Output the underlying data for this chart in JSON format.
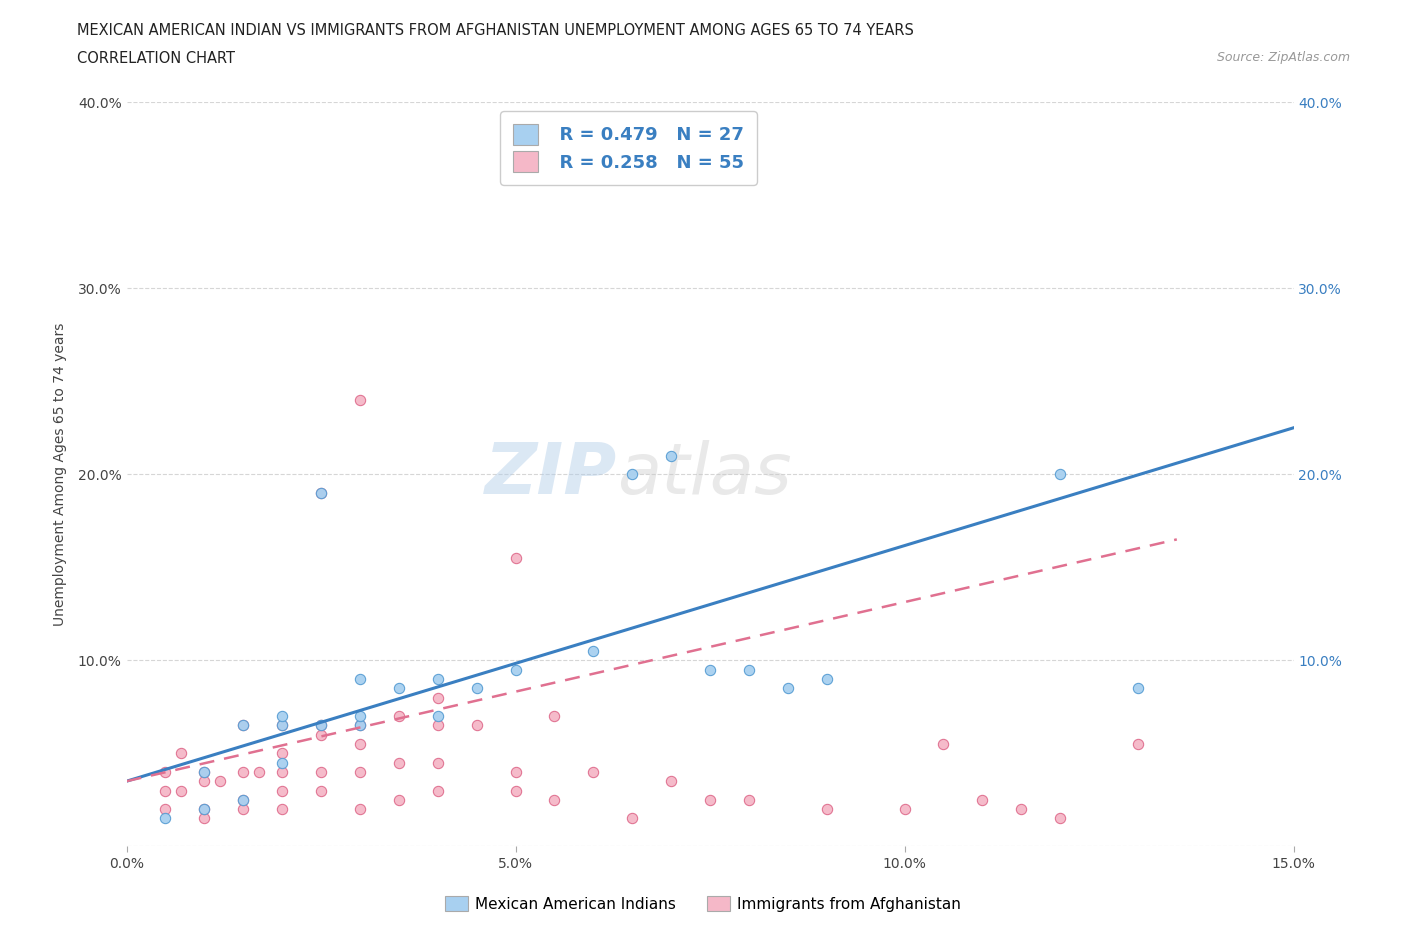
{
  "title_line1": "MEXICAN AMERICAN INDIAN VS IMMIGRANTS FROM AFGHANISTAN UNEMPLOYMENT AMONG AGES 65 TO 74 YEARS",
  "title_line2": "CORRELATION CHART",
  "source_text": "Source: ZipAtlas.com",
  "ylabel": "Unemployment Among Ages 65 to 74 years",
  "watermark_part1": "ZIP",
  "watermark_part2": "atlas",
  "legend_blue_r": "R = 0.479",
  "legend_blue_n": "N = 27",
  "legend_pink_r": "R = 0.258",
  "legend_pink_n": "N = 55",
  "legend_label_blue": "Mexican American Indians",
  "legend_label_pink": "Immigrants from Afghanistan",
  "blue_color": "#a8d0f0",
  "pink_color": "#f5b8c8",
  "blue_edge_color": "#5a9fd4",
  "pink_edge_color": "#e07090",
  "blue_line_color": "#3a7fc1",
  "pink_line_color": "#e07090",
  "right_tick_color": "#3a7fc1",
  "grid_color": "#cccccc",
  "background_color": "#ffffff",
  "xmin": 0.0,
  "xmax": 0.15,
  "ymin": 0.0,
  "ymax": 0.4,
  "xticks": [
    0.0,
    0.05,
    0.1,
    0.15
  ],
  "yticks": [
    0.0,
    0.1,
    0.2,
    0.3,
    0.4
  ],
  "xtick_labels": [
    "0.0%",
    "5.0%",
    "10.0%",
    "15.0%"
  ],
  "left_ytick_labels": [
    "",
    "10.0%",
    "20.0%",
    "30.0%",
    "40.0%"
  ],
  "right_ytick_labels": [
    "",
    "10.0%",
    "20.0%",
    "30.0%",
    "40.0%"
  ],
  "blue_scatter_x": [
    0.005,
    0.01,
    0.01,
    0.015,
    0.015,
    0.02,
    0.02,
    0.02,
    0.025,
    0.025,
    0.03,
    0.03,
    0.03,
    0.035,
    0.04,
    0.04,
    0.045,
    0.05,
    0.06,
    0.065,
    0.07,
    0.075,
    0.08,
    0.085,
    0.09,
    0.12,
    0.13
  ],
  "blue_scatter_y": [
    0.015,
    0.02,
    0.04,
    0.025,
    0.065,
    0.045,
    0.065,
    0.07,
    0.065,
    0.19,
    0.065,
    0.07,
    0.09,
    0.085,
    0.07,
    0.09,
    0.085,
    0.095,
    0.105,
    0.2,
    0.21,
    0.095,
    0.095,
    0.085,
    0.09,
    0.2,
    0.085
  ],
  "pink_scatter_x": [
    0.005,
    0.005,
    0.005,
    0.007,
    0.007,
    0.01,
    0.01,
    0.01,
    0.01,
    0.012,
    0.015,
    0.015,
    0.015,
    0.015,
    0.017,
    0.02,
    0.02,
    0.02,
    0.02,
    0.02,
    0.025,
    0.025,
    0.025,
    0.025,
    0.025,
    0.03,
    0.03,
    0.03,
    0.03,
    0.03,
    0.035,
    0.035,
    0.035,
    0.04,
    0.04,
    0.04,
    0.04,
    0.045,
    0.05,
    0.05,
    0.05,
    0.055,
    0.055,
    0.06,
    0.065,
    0.07,
    0.075,
    0.08,
    0.09,
    0.1,
    0.105,
    0.11,
    0.115,
    0.12,
    0.13
  ],
  "pink_scatter_y": [
    0.02,
    0.03,
    0.04,
    0.03,
    0.05,
    0.015,
    0.02,
    0.035,
    0.04,
    0.035,
    0.02,
    0.025,
    0.04,
    0.065,
    0.04,
    0.02,
    0.03,
    0.04,
    0.05,
    0.065,
    0.03,
    0.04,
    0.06,
    0.065,
    0.19,
    0.02,
    0.04,
    0.055,
    0.065,
    0.24,
    0.025,
    0.045,
    0.07,
    0.03,
    0.045,
    0.065,
    0.08,
    0.065,
    0.03,
    0.04,
    0.155,
    0.025,
    0.07,
    0.04,
    0.015,
    0.035,
    0.025,
    0.025,
    0.02,
    0.02,
    0.055,
    0.025,
    0.02,
    0.015,
    0.055
  ],
  "blue_trend_x": [
    0.0,
    0.15
  ],
  "blue_trend_y": [
    0.035,
    0.225
  ],
  "pink_trend_x": [
    0.0,
    0.135
  ],
  "pink_trend_y": [
    0.035,
    0.165
  ]
}
